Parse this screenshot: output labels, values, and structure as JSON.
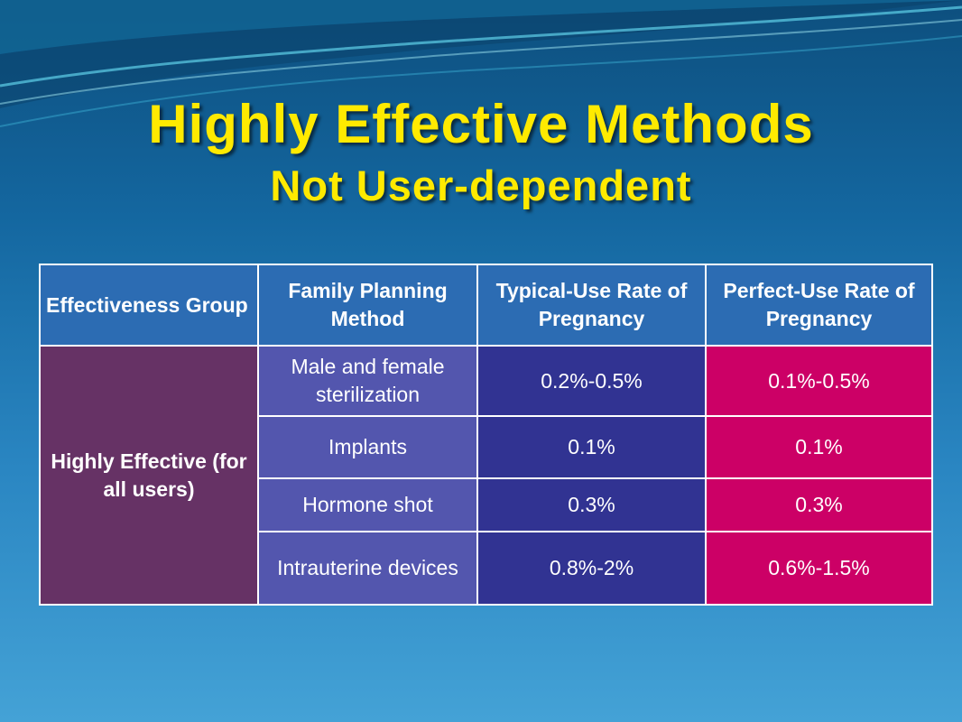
{
  "slide": {
    "title": "Highly Effective Methods",
    "subtitle": "Not User-dependent"
  },
  "table": {
    "headers": [
      "Effectiveness Group",
      "Family Planning Method",
      "Typical-Use Rate of Pregnancy",
      "Perfect-Use Rate of Pregnancy"
    ],
    "group": "Highly Effective (for all users)",
    "rows": [
      {
        "method": "Male and female sterilization",
        "typical": "0.2%-0.5%",
        "perfect": "0.1%-0.5%"
      },
      {
        "method": "Implants",
        "typical": "0.1%",
        "perfect": "0.1%"
      },
      {
        "method": "Hormone shot",
        "typical": "0.3%",
        "perfect": "0.3%"
      },
      {
        "method": "Intrauterine devices",
        "typical": "0.8%-2%",
        "perfect": "0.6%-1.5%"
      }
    ]
  },
  "colors": {
    "title": "#ffea00",
    "header_bg": "#2c6cb3",
    "group_bg": "#663265",
    "method_bg": "#5356ae",
    "typical_bg": "#313392",
    "perfect_bg": "#cc0066"
  }
}
